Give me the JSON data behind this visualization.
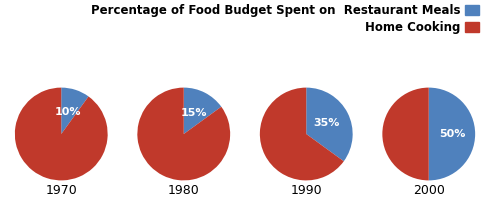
{
  "years": [
    "1970",
    "1980",
    "1990",
    "2000"
  ],
  "restaurant_pct": [
    10,
    15,
    35,
    50
  ],
  "home_cooking_pct": [
    90,
    85,
    65,
    50
  ],
  "restaurant_color": "#4f81bd",
  "home_cooking_color": "#c0392b",
  "legend_label_restaurant": "Percentage of Food Budget Spent on  Restaurant Meals",
  "legend_label_home": "Home Cooking",
  "background_color": "#ffffff",
  "year_fontsize": 9,
  "pct_fontsize": 8,
  "legend_fontsize": 8.5
}
